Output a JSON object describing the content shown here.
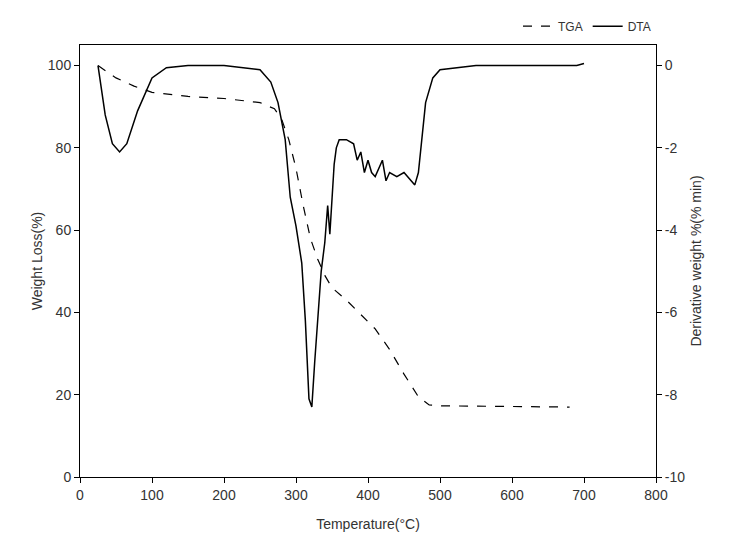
{
  "chart_data": {
    "type": "line",
    "x_label": "Temperature(°C)",
    "y_label": "Weight Loss(%)",
    "y2_label": "Derivative weight %(% min)",
    "xlim": [
      0,
      800
    ],
    "xticks": [
      0,
      100,
      200,
      300,
      400,
      500,
      600,
      700,
      800
    ],
    "ylim": [
      0,
      105
    ],
    "yticks": [
      0,
      20,
      40,
      60,
      80,
      100
    ],
    "y2lim": [
      -10,
      0.5
    ],
    "y2ticks": [
      -10,
      -8,
      -6,
      -4,
      -2,
      0
    ],
    "grid": false,
    "legend": "top right",
    "series": [
      {
        "name": "TGA",
        "color": "#000000",
        "line_style": "dash",
        "axis": "y",
        "x": [
          25,
          50,
          75,
          100,
          150,
          200,
          250,
          270,
          280,
          290,
          300,
          310,
          320,
          330,
          340,
          350,
          370,
          390,
          410,
          430,
          450,
          470,
          485,
          500,
          550,
          600,
          650,
          680
        ],
        "values": [
          100,
          97,
          95,
          93.5,
          92.5,
          92,
          91,
          89.5,
          87,
          82,
          75,
          66,
          58,
          53,
          49,
          46,
          43,
          39.5,
          36,
          31,
          25,
          19.5,
          17.5,
          17.3,
          17.2,
          17.1,
          17,
          17
        ]
      },
      {
        "name": "DTA",
        "color": "#000000",
        "line_style": "solid",
        "axis": "y2",
        "x": [
          25,
          35,
          45,
          55,
          65,
          80,
          100,
          120,
          150,
          200,
          250,
          265,
          275,
          285,
          292,
          300,
          308,
          313,
          318,
          322,
          326,
          330,
          335,
          340,
          344,
          347,
          350,
          353,
          356,
          360,
          370,
          380,
          385,
          390,
          395,
          400,
          405,
          410,
          420,
          425,
          430,
          440,
          450,
          460,
          465,
          470,
          475,
          480,
          490,
          500,
          550,
          600,
          650,
          690,
          700
        ],
        "values": [
          0,
          -1.2,
          -1.9,
          -2.1,
          -1.9,
          -1.1,
          -0.3,
          -0.05,
          0,
          0,
          -0.1,
          -0.4,
          -0.9,
          -1.8,
          -3.2,
          -3.9,
          -4.8,
          -6.2,
          -8.1,
          -8.3,
          -7.2,
          -6.2,
          -5.0,
          -4.3,
          -3.4,
          -4.1,
          -3.2,
          -2.4,
          -2.0,
          -1.8,
          -1.8,
          -1.9,
          -2.3,
          -2.1,
          -2.6,
          -2.3,
          -2.6,
          -2.7,
          -2.3,
          -2.8,
          -2.6,
          -2.7,
          -2.6,
          -2.8,
          -2.9,
          -2.6,
          -1.8,
          -0.9,
          -0.3,
          -0.1,
          0,
          0,
          0,
          0,
          0.05
        ]
      }
    ]
  }
}
